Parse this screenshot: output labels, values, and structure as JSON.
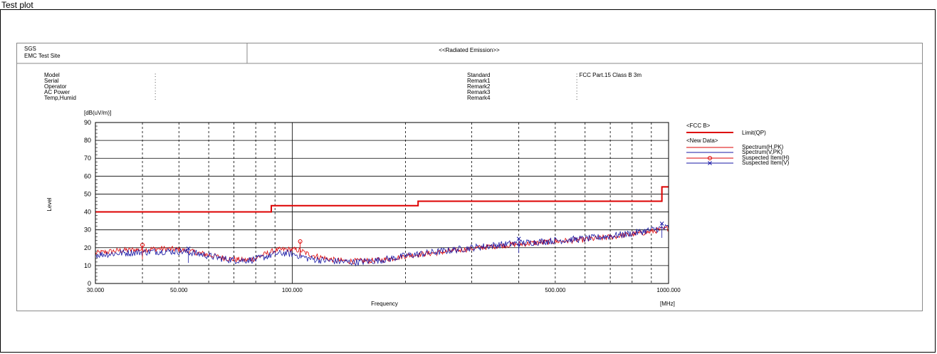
{
  "page_label": "Test plot",
  "header": {
    "company": "SGS",
    "site": "EMC Test Site",
    "title": "<<Radiated Emission>>"
  },
  "info_left": [
    {
      "label": "Model",
      "value": ":"
    },
    {
      "label": "Serial",
      "value": ":"
    },
    {
      "label": "Operator",
      "value": ":"
    },
    {
      "label": "AC Power",
      "value": ":"
    },
    {
      "label": "Temp,Humid",
      "value": ":"
    }
  ],
  "info_right": [
    {
      "label": "Standard",
      "value": ": FCC Part.15 Class B 3m"
    },
    {
      "label": "Remark1",
      "value": ":"
    },
    {
      "label": "Remark2",
      "value": ":"
    },
    {
      "label": "Remark3",
      "value": ":"
    },
    {
      "label": "Remark4",
      "value": ":"
    }
  ],
  "legend": {
    "group1": "<FCC B>",
    "group2": "<New Data>",
    "items": [
      {
        "label": "Limit(QP)",
        "color": "#dd0000",
        "style": "thick-line"
      },
      {
        "label": "Spectrum(H,PK)",
        "color": "#dd0000",
        "style": "line"
      },
      {
        "label": "Spectrum(V,PK)",
        "color": "#1a1aa6",
        "style": "line"
      },
      {
        "label": "Suspected Item(H)",
        "color": "#dd0000",
        "style": "circle"
      },
      {
        "label": "Suspected Item(V)",
        "color": "#1a1aa6",
        "style": "cross"
      }
    ]
  },
  "chart_data": {
    "type": "line",
    "xscale": "log",
    "xlim": [
      30,
      1000
    ],
    "ylim": [
      0,
      90
    ],
    "xlabel": "Frequency",
    "xunit": "[MHz]",
    "ylabel": "Level",
    "yunit": "[dB(uV/m)]",
    "xticks": [
      {
        "value": 30,
        "label": "30.000"
      },
      {
        "value": 50,
        "label": "50.000"
      },
      {
        "value": 100,
        "label": "100.000"
      },
      {
        "value": 500,
        "label": "500.000"
      },
      {
        "value": 1000,
        "label": "1000.000"
      }
    ],
    "yticks": [
      0,
      10,
      20,
      30,
      40,
      50,
      60,
      70,
      80,
      90
    ],
    "grid": true,
    "limit": {
      "name": "Limit(QP)",
      "color": "#dd0000",
      "points": [
        [
          30,
          40
        ],
        [
          88,
          40
        ],
        [
          88,
          43.5
        ],
        [
          216,
          43.5
        ],
        [
          216,
          46
        ],
        [
          960,
          46
        ],
        [
          960,
          54
        ],
        [
          1000,
          54
        ]
      ]
    },
    "series": [
      {
        "name": "Spectrum(H,PK)",
        "color": "#dd0000",
        "noise": 1.6,
        "points": [
          [
            30,
            17
          ],
          [
            35,
            18.5
          ],
          [
            40,
            19
          ],
          [
            45,
            19.5
          ],
          [
            50,
            19
          ],
          [
            55,
            17.5
          ],
          [
            60,
            16
          ],
          [
            65,
            14.5
          ],
          [
            70,
            13.5
          ],
          [
            75,
            13
          ],
          [
            80,
            14
          ],
          [
            85,
            16.5
          ],
          [
            90,
            18.5
          ],
          [
            95,
            19
          ],
          [
            100,
            19
          ],
          [
            105,
            18.5
          ],
          [
            110,
            16.5
          ],
          [
            120,
            14.5
          ],
          [
            130,
            13
          ],
          [
            140,
            12.5
          ],
          [
            150,
            12.5
          ],
          [
            170,
            13
          ],
          [
            185,
            14
          ],
          [
            200,
            15.5
          ],
          [
            250,
            17.5
          ],
          [
            300,
            19.5
          ],
          [
            350,
            21
          ],
          [
            400,
            22
          ],
          [
            500,
            23.5
          ],
          [
            600,
            24.5
          ],
          [
            700,
            26
          ],
          [
            800,
            27.5
          ],
          [
            900,
            29
          ],
          [
            1000,
            31
          ]
        ]
      },
      {
        "name": "Spectrum(V,PK)",
        "color": "#1a1aa6",
        "noise": 2.0,
        "points": [
          [
            30,
            16
          ],
          [
            35,
            17
          ],
          [
            40,
            17.5
          ],
          [
            45,
            18
          ],
          [
            50,
            18
          ],
          [
            55,
            17
          ],
          [
            60,
            15.5
          ],
          [
            65,
            14
          ],
          [
            70,
            13
          ],
          [
            75,
            13
          ],
          [
            80,
            13.5
          ],
          [
            85,
            15
          ],
          [
            90,
            16.5
          ],
          [
            95,
            17
          ],
          [
            100,
            16.5
          ],
          [
            105,
            15.5
          ],
          [
            110,
            14
          ],
          [
            120,
            13
          ],
          [
            130,
            12.5
          ],
          [
            140,
            12
          ],
          [
            150,
            12
          ],
          [
            170,
            13
          ],
          [
            185,
            14
          ],
          [
            200,
            15.5
          ],
          [
            250,
            18
          ],
          [
            300,
            20
          ],
          [
            350,
            21.5
          ],
          [
            400,
            22.5
          ],
          [
            500,
            24
          ],
          [
            600,
            25
          ],
          [
            700,
            26.5
          ],
          [
            800,
            28
          ],
          [
            900,
            30
          ],
          [
            1000,
            31.5
          ]
        ]
      }
    ],
    "suspected_h": [
      [
        40,
        21.5
      ],
      [
        105,
        23.5
      ]
    ],
    "suspected_v": [
      [
        53,
        19.5
      ],
      [
        400,
        25
      ],
      [
        960,
        33.5
      ]
    ]
  }
}
